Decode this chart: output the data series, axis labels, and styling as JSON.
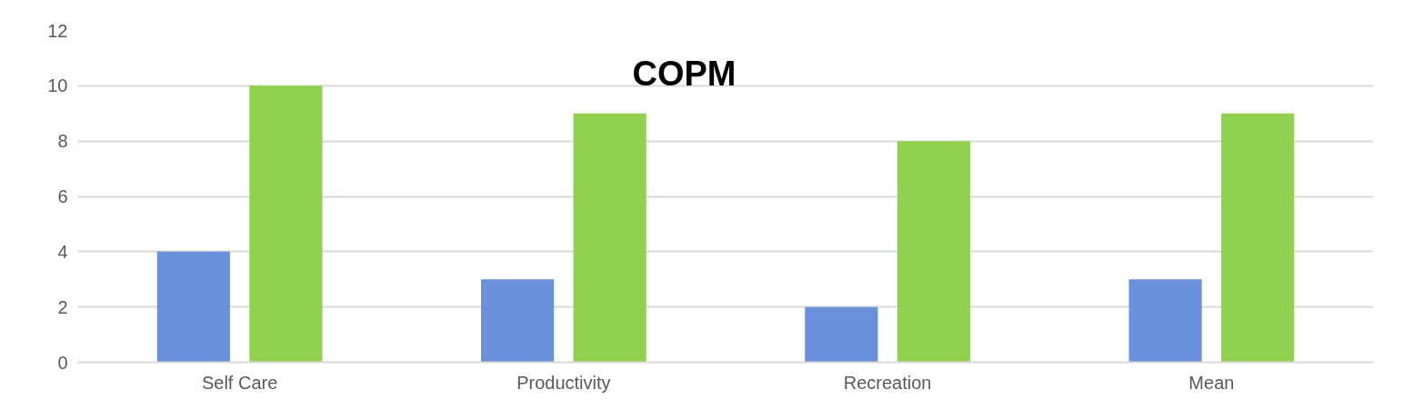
{
  "chart_data": {
    "type": "bar",
    "title": "COPM",
    "categories": [
      "Self Care",
      "Productivity",
      "Recreation",
      "Mean"
    ],
    "series": [
      {
        "color": "#6a8fdb",
        "values": [
          4,
          3,
          2,
          3
        ]
      },
      {
        "color": "#92d050",
        "values": [
          10,
          9,
          8,
          9
        ]
      }
    ],
    "ylim": [
      0,
      12
    ],
    "yticks": [
      0,
      2,
      4,
      6,
      8,
      10,
      12
    ],
    "grid": "y"
  }
}
